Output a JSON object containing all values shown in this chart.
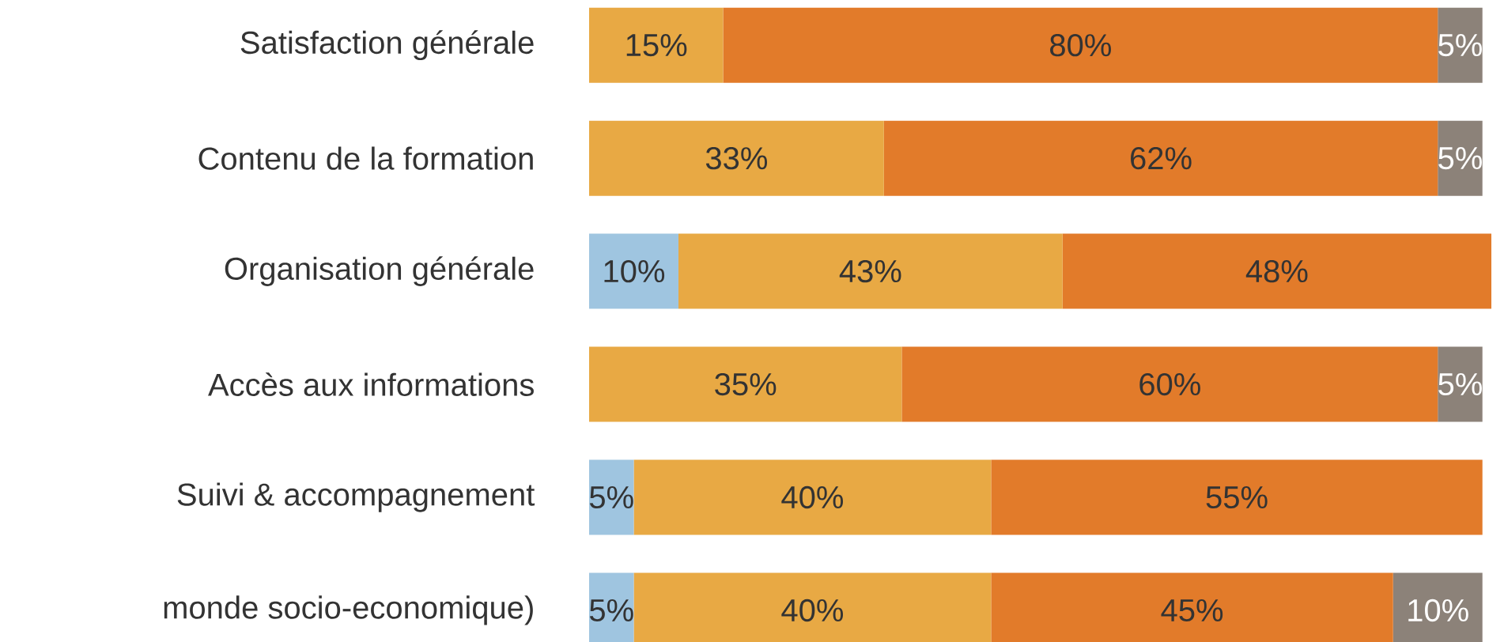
{
  "chart_data": {
    "type": "bar",
    "orientation": "horizontal",
    "stacked": true,
    "tick_labels": "y",
    "categories": [
      "Satisfaction générale",
      "Contenu de la formation",
      "Organisation générale",
      "Accès aux informations",
      "Suivi & accompagnement",
      "monde socio-economique)"
    ],
    "series": [
      {
        "color": "#9fc5e0",
        "values": [
          null,
          null,
          10,
          null,
          5,
          5
        ],
        "value_labels": [
          null,
          null,
          "10%",
          null,
          "5%",
          "5%"
        ]
      },
      {
        "color": "#e8a944",
        "values": [
          15,
          33,
          43,
          35,
          40,
          40
        ],
        "value_labels": [
          "15%",
          "33%",
          "43%",
          "35%",
          "40%",
          "40%"
        ]
      },
      {
        "color": "#e27b2a",
        "values": [
          80,
          62,
          48,
          60,
          55,
          45
        ],
        "value_labels": [
          "80%",
          "62%",
          "48%",
          "60%",
          "55%",
          "45%"
        ]
      },
      {
        "color": "#8c8279",
        "values": [
          5,
          5,
          null,
          5,
          null,
          10
        ],
        "value_labels": [
          "5%",
          "5%",
          null,
          "5%",
          null,
          "10%"
        ]
      }
    ]
  }
}
